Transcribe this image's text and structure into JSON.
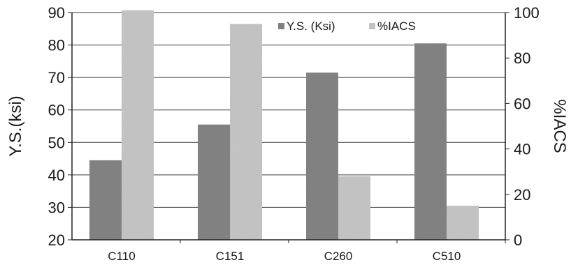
{
  "chart_data": {
    "type": "bar",
    "categories": [
      "C110",
      "C151",
      "C260",
      "C510"
    ],
    "series": [
      {
        "name": "Y.S. (Ksi)",
        "axis": "left",
        "values": [
          44.5,
          55.5,
          71.5,
          80.5
        ],
        "color": "#8a8a8a"
      },
      {
        "name": "%IACS",
        "axis": "right",
        "values": [
          101,
          95,
          28,
          15
        ],
        "color": "#cfcfcf"
      }
    ],
    "ylabel": "Y.S.(ksi)",
    "y2label": "%IACS",
    "ylim": [
      20,
      90
    ],
    "y2lim": [
      0,
      100
    ],
    "yticks": [
      "20",
      "30",
      "40",
      "50",
      "60",
      "70",
      "80",
      "90"
    ],
    "y2ticks": [
      "0",
      "20",
      "40",
      "60",
      "80",
      "100"
    ],
    "grid": true,
    "legend_position": "top-right"
  }
}
